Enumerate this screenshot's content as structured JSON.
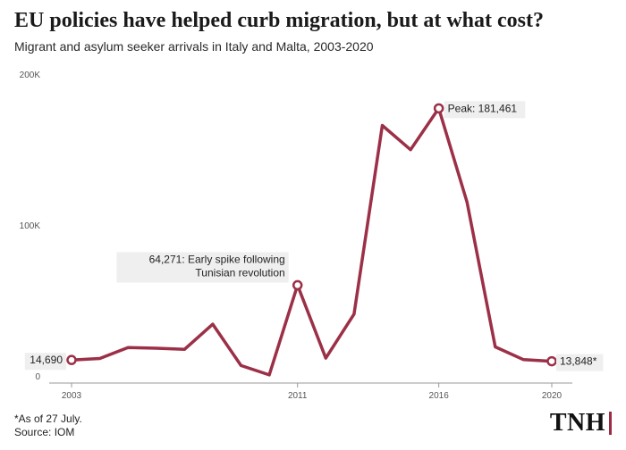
{
  "header": {
    "title": "EU policies have helped curb migration, but at what cost?",
    "subtitle": "Migrant and asylum seeker arrivals in Italy and Malta, 2003-2020"
  },
  "footer": {
    "note": "*As of 27 July.",
    "source": "Source: IOM",
    "logo": "TNH"
  },
  "colors": {
    "line": "#9b3047",
    "label_bg": "#efefef",
    "axis": "#999999",
    "logo_accent": "#9b2c44"
  },
  "chart_data": {
    "type": "line",
    "title": "EU policies have helped curb migration, but at what cost?",
    "subtitle": "Migrant and asylum seeker arrivals in Italy and Malta, 2003-2020",
    "xlabel": "",
    "ylabel": "",
    "x": [
      2003,
      2004,
      2005,
      2006,
      2007,
      2008,
      2009,
      2010,
      2011,
      2012,
      2013,
      2014,
      2015,
      2016,
      2017,
      2018,
      2019,
      2020
    ],
    "series": [
      {
        "name": "Arrivals",
        "values": [
          14690,
          15700,
          22900,
          22500,
          21800,
          38400,
          11000,
          4800,
          64271,
          15900,
          45100,
          170100,
          154000,
          181461,
          119400,
          23400,
          14900,
          13848
        ]
      }
    ],
    "ylim": [
      0,
      200000
    ],
    "yticks": [
      {
        "value": 0,
        "label": "0"
      },
      {
        "value": 100000,
        "label": "100K"
      },
      {
        "value": 200000,
        "label": "200K"
      }
    ],
    "xticks": [
      {
        "value": 2003,
        "label": "2003"
      },
      {
        "value": 2011,
        "label": "2011"
      },
      {
        "value": 2016,
        "label": "2016"
      },
      {
        "value": 2020,
        "label": "2020"
      }
    ],
    "annotations": [
      {
        "x": 2003,
        "y": 14690,
        "text": "14,690",
        "lines": [
          "14,690"
        ]
      },
      {
        "x": 2011,
        "y": 64271,
        "text": "64,271: Early spike following Tunisian revolution",
        "lines": [
          "64,271: Early spike following",
          "Tunisian revolution"
        ]
      },
      {
        "x": 2016,
        "y": 181461,
        "text": "Peak: 181,461",
        "lines": [
          "Peak: 181,461"
        ]
      },
      {
        "x": 2020,
        "y": 13848,
        "text": "13,848*",
        "lines": [
          "13,848*"
        ]
      }
    ],
    "grid": false
  }
}
